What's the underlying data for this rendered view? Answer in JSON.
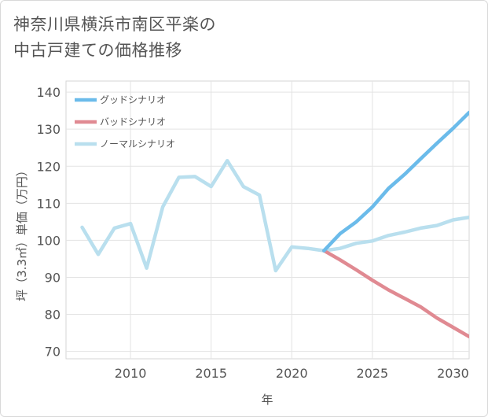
{
  "chart_data": {
    "type": "line",
    "title_line1": "神奈川県横浜市南区平楽の",
    "title_line2": "中古戸建ての価格推移",
    "xlabel": "年",
    "ylabel": "坪（3.3㎡）単価（万円）",
    "xlim": [
      2006,
      2031
    ],
    "ylim": [
      68,
      143
    ],
    "x_ticks": [
      2010,
      2015,
      2020,
      2025,
      2030
    ],
    "y_ticks": [
      70,
      80,
      90,
      100,
      110,
      120,
      130,
      140
    ],
    "grid": true,
    "legend_position": "top-left",
    "series": [
      {
        "name": "グッドシナリオ",
        "color": "#6bbbea",
        "x": [
          2022,
          2023,
          2024,
          2025,
          2026,
          2027,
          2028,
          2029,
          2030,
          2031
        ],
        "y": [
          97.2,
          101.8,
          105.0,
          109.0,
          114.0,
          117.8,
          122.0,
          126.2,
          130.2,
          134.5
        ]
      },
      {
        "name": "バッドシナリオ",
        "color": "#e08a92",
        "x": [
          2022,
          2023,
          2024,
          2025,
          2026,
          2027,
          2028,
          2029,
          2030,
          2031
        ],
        "y": [
          97.2,
          94.7,
          92.0,
          89.2,
          86.6,
          84.3,
          82.0,
          79.0,
          76.5,
          74.0
        ]
      },
      {
        "name": "ノーマルシナリオ",
        "color": "#b9dfee",
        "x": [
          2007,
          2008,
          2009,
          2010,
          2011,
          2012,
          2013,
          2014,
          2015,
          2016,
          2017,
          2018,
          2019,
          2020,
          2021,
          2022,
          2023,
          2024,
          2025,
          2026,
          2027,
          2028,
          2029,
          2030,
          2031
        ],
        "y": [
          103.5,
          96.2,
          103.3,
          104.5,
          92.5,
          109.0,
          117.0,
          117.2,
          114.5,
          121.5,
          114.5,
          112.2,
          91.8,
          98.2,
          97.8,
          97.2,
          97.8,
          99.2,
          99.8,
          101.3,
          102.2,
          103.3,
          104.0,
          105.5,
          106.2
        ]
      }
    ]
  }
}
